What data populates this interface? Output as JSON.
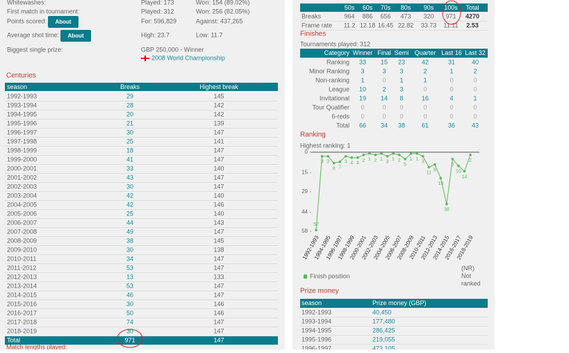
{
  "stats": {
    "rows": [
      {
        "label": "Whitewashes:",
        "a": "Played: 173",
        "b": "Won: 154 (89.02%)"
      },
      {
        "label": "First match in tournament:",
        "a": "Played: 312",
        "b": "Won: 256 (82.05%)"
      },
      {
        "label": "Points scored:",
        "button": "About",
        "a": "For: 596,829",
        "b": "Against: 437,265"
      },
      {
        "label": "Average shot time:",
        "button": "About",
        "a": "High: 23.7",
        "b": "Low: 11.7"
      },
      {
        "label": "Biggest single prize:",
        "a": "GBP 250,000 - Winner",
        "link": "2008 World Championship"
      }
    ]
  },
  "centuries": {
    "title": "Centuries",
    "header": [
      "season",
      "Breaks",
      "Highest break"
    ],
    "rows": [
      [
        "1992-1993",
        29,
        145
      ],
      [
        "1993-1994",
        28,
        142
      ],
      [
        "1994-1995",
        20,
        142
      ],
      [
        "1995-1996",
        21,
        139
      ],
      [
        "1996-1997",
        30,
        147
      ],
      [
        "1997-1998",
        25,
        141
      ],
      [
        "1998-1999",
        18,
        147
      ],
      [
        "1999-2000",
        41,
        147
      ],
      [
        "2000-2001",
        33,
        140
      ],
      [
        "2001-2002",
        43,
        147
      ],
      [
        "2002-2003",
        30,
        147
      ],
      [
        "2003-2004",
        42,
        140
      ],
      [
        "2004-2005",
        42,
        146
      ],
      [
        "2005-2006",
        25,
        140
      ],
      [
        "2006-2007",
        44,
        143
      ],
      [
        "2007-2008",
        49,
        147
      ],
      [
        "2008-2009",
        38,
        145
      ],
      [
        "2009-2010",
        30,
        138
      ],
      [
        "2010-2011",
        34,
        147
      ],
      [
        "2011-2012",
        53,
        147
      ],
      [
        "2012-2013",
        13,
        133
      ],
      [
        "2013-2014",
        53,
        147
      ],
      [
        "2014-2015",
        46,
        147
      ],
      [
        "2015-2016",
        30,
        146
      ],
      [
        "2016-2017",
        50,
        146
      ],
      [
        "2017-2018",
        74,
        147
      ],
      [
        "2018-2019",
        30,
        147
      ]
    ],
    "total": [
      "Total",
      971,
      147
    ],
    "footer": "Match lengths played:"
  },
  "breaks_summary": {
    "header": [
      "50s",
      "60s",
      "70s",
      "80s",
      "90s",
      "100s",
      "Total"
    ],
    "rows": [
      [
        "Breaks",
        964,
        886,
        656,
        473,
        320,
        971,
        4270
      ],
      [
        "Frame rate",
        11.2,
        12.18,
        16.45,
        22.82,
        33.73,
        11.11,
        2.53
      ]
    ]
  },
  "finishes": {
    "title": "Finishes",
    "subtitle": "Tournaments played: 312",
    "header": [
      "Category",
      "Winner",
      "Final",
      "Semi",
      "Quarter",
      "Last 16",
      "Last 32"
    ],
    "rows": [
      [
        "Ranking",
        33,
        15,
        23,
        42,
        31,
        40
      ],
      [
        "Minor Ranking",
        3,
        3,
        3,
        2,
        1,
        2
      ],
      [
        "Non-ranking",
        1,
        0,
        1,
        1,
        0,
        0
      ],
      [
        "League",
        10,
        2,
        3,
        0,
        0,
        0
      ],
      [
        "Invitational",
        19,
        14,
        8,
        16,
        4,
        1
      ],
      [
        "Tour Qualifier",
        0,
        0,
        0,
        0,
        0,
        0
      ],
      [
        "6-reds",
        0,
        0,
        0,
        0,
        0,
        0
      ],
      [
        "Total",
        66,
        34,
        38,
        61,
        36,
        43
      ]
    ]
  },
  "chart_data": {
    "type": "line",
    "title": "Ranking",
    "subtitle": "Highest ranking: 1",
    "categories": [
      "1992-1993",
      null,
      "1994-1995",
      null,
      "1996-1997",
      null,
      "1998-1999",
      null,
      "2000-2001",
      null,
      "2002-2003",
      null,
      "2004-2005",
      null,
      "2006-2007",
      null,
      "2008-2009",
      null,
      "2010-2011",
      null,
      "2012-2013",
      null,
      "2014-2015",
      null,
      "2016-2017",
      null,
      "2018-2019"
    ],
    "series": [
      {
        "name": "Finish position",
        "color": "#5cb85c",
        "values": [
          57,
          3,
          3,
          8,
          7,
          3,
          4,
          4,
          2,
          1,
          2,
          1,
          3,
          1,
          2,
          5,
          1,
          1,
          3,
          11,
          9,
          19,
          38,
          5,
          10,
          14,
          2
        ]
      }
    ],
    "ylim": [
      0,
      58
    ],
    "yticks": [
      0,
      15,
      29,
      44,
      58
    ],
    "y_inverted": true,
    "note": "(NR)\nNot\nranked"
  },
  "prize_money": {
    "title": "Prize money",
    "header": [
      "season",
      "Prize money (GBP)"
    ],
    "rows": [
      [
        "1992-1993",
        "40,450"
      ],
      [
        "1993-1994",
        "177,480"
      ],
      [
        "1994-1995",
        "286,425"
      ],
      [
        "1995-1996",
        "219,055"
      ],
      [
        "1996-1997",
        "473,105"
      ]
    ]
  }
}
